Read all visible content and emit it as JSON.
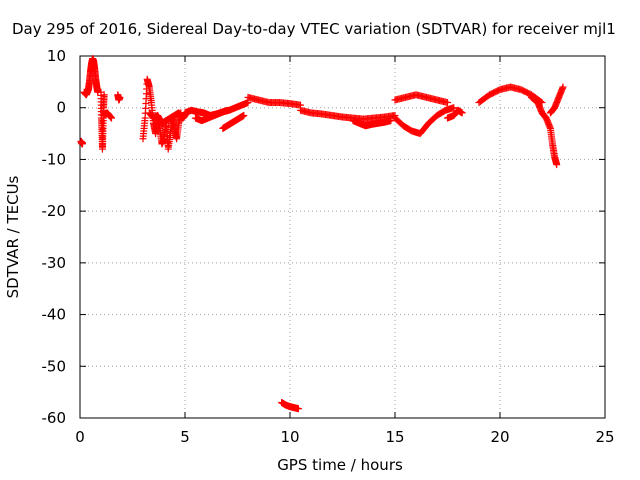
{
  "chart_data": {
    "type": "scatter",
    "title": "Day 295 of 2016, Sidereal Day-to-day VTEC variation (SDTVAR) for receiver mjl1",
    "xlabel": "GPS time / hours",
    "ylabel": "SDTVAR / TECUs",
    "xlim": [
      0,
      25
    ],
    "ylim": [
      -60,
      10
    ],
    "x_ticks": [
      0,
      5,
      10,
      15,
      20,
      25
    ],
    "y_ticks": [
      -60,
      -50,
      -40,
      -30,
      -20,
      -10,
      0,
      10
    ],
    "x_tick_labels": [
      "0",
      "5",
      "10",
      "15",
      "20",
      "25"
    ],
    "y_tick_labels": [
      "-60",
      "-50",
      "-40",
      "-30",
      "-20",
      "-10",
      "0",
      "10"
    ],
    "grid": true,
    "marker": "plus",
    "color": "#ff0000",
    "series": [
      {
        "name": "sdtvar",
        "segments": [
          {
            "x": [
              0.05,
              0.1,
              0.12
            ],
            "y": [
              -6.5,
              -7.0,
              -6.8
            ]
          },
          {
            "x": [
              0.2,
              0.3,
              0.4,
              0.45,
              0.5,
              0.55,
              0.6,
              0.65,
              0.7,
              0.75,
              0.8,
              0.85
            ],
            "y": [
              3.0,
              2.5,
              3.5,
              5.0,
              7.0,
              8.5,
              9.5,
              9.0,
              7.5,
              5.5,
              4.0,
              3.0
            ]
          },
          {
            "x": [
              1.0,
              1.02,
              1.05,
              1.07,
              1.1,
              1.12,
              1.15
            ],
            "y": [
              3.0,
              -2.0,
              -5.0,
              -8.0,
              -4.0,
              0.0,
              2.5
            ]
          },
          {
            "x": [
              1.1,
              1.3,
              1.5
            ],
            "y": [
              -1.5,
              -1.0,
              -2.0
            ]
          },
          {
            "x": [
              1.8,
              1.85,
              1.9
            ],
            "y": [
              2.5,
              1.5,
              2.0
            ]
          },
          {
            "x": [
              3.0,
              3.1,
              3.2,
              3.3,
              3.4,
              3.5,
              3.6,
              3.7,
              3.8,
              3.9,
              4.0,
              4.1,
              4.2,
              4.3,
              4.4,
              4.5,
              4.6,
              4.7,
              4.8
            ],
            "y": [
              -6.0,
              -2.0,
              5.5,
              4.0,
              1.0,
              -3.0,
              -5.0,
              -2.0,
              -4.0,
              -7.0,
              -6.0,
              -3.0,
              -8.0,
              -5.0,
              -2.0,
              -4.0,
              -6.0,
              -3.0,
              -1.0
            ]
          },
          {
            "x": [
              3.3,
              3.5,
              3.7,
              3.9,
              4.1,
              4.3,
              4.5,
              4.7,
              4.9,
              5.0
            ],
            "y": [
              -1.0,
              -2.0,
              -1.5,
              -3.0,
              -2.5,
              -2.0,
              -1.5,
              -1.0,
              -2.0,
              -1.5
            ]
          },
          {
            "x": [
              5.0,
              5.3,
              5.6,
              5.9,
              6.2,
              6.5,
              6.8,
              7.1,
              7.4,
              7.7,
              8.0
            ],
            "y": [
              -1.0,
              -0.5,
              -0.8,
              -1.0,
              -1.5,
              -1.2,
              -0.8,
              -0.5,
              0.0,
              0.5,
              1.0
            ]
          },
          {
            "x": [
              5.5,
              5.8,
              6.1,
              6.4,
              6.7,
              7.0
            ],
            "y": [
              -2.0,
              -2.5,
              -2.0,
              -1.5,
              -1.0,
              -0.5
            ]
          },
          {
            "x": [
              6.8,
              7.0,
              7.2,
              7.4,
              7.6,
              7.8
            ],
            "y": [
              -4.0,
              -3.5,
              -3.0,
              -2.5,
              -2.0,
              -1.5
            ]
          },
          {
            "x": [
              8.0,
              8.5,
              9.0,
              9.5,
              10.0,
              10.5
            ],
            "y": [
              2.0,
              1.5,
              1.0,
              1.0,
              0.8,
              0.5
            ]
          },
          {
            "x": [
              10.5,
              11.0,
              11.5,
              12.0,
              12.5,
              13.0,
              13.5,
              14.0,
              14.5,
              15.0
            ],
            "y": [
              -0.5,
              -1.0,
              -1.2,
              -1.5,
              -1.8,
              -2.0,
              -2.2,
              -2.0,
              -1.8,
              -1.5
            ]
          },
          {
            "x": [
              13.0,
              13.3,
              13.6,
              13.9,
              14.2,
              14.5,
              14.8
            ],
            "y": [
              -2.5,
              -3.0,
              -3.5,
              -3.2,
              -3.0,
              -2.8,
              -2.5
            ]
          },
          {
            "x": [
              15.0,
              15.5,
              16.0,
              16.5,
              17.0,
              17.5
            ],
            "y": [
              1.5,
              2.0,
              2.5,
              2.0,
              1.5,
              1.0
            ]
          },
          {
            "x": [
              15.0,
              15.4,
              15.8,
              16.2,
              16.6,
              17.0,
              17.4,
              17.8
            ],
            "y": [
              -2.0,
              -3.5,
              -4.5,
              -5.0,
              -3.0,
              -1.5,
              -0.5,
              0.0
            ]
          },
          {
            "x": [
              17.5,
              17.8,
              18.0,
              18.2
            ],
            "y": [
              -2.0,
              -1.5,
              -0.5,
              -1.0
            ]
          },
          {
            "x": [
              9.6,
              9.8,
              10.0,
              10.2,
              10.4
            ],
            "y": [
              -57.0,
              -57.5,
              -57.8,
              -58.0,
              -58.2
            ]
          },
          {
            "x": [
              19.0,
              19.5,
              20.0,
              20.5,
              21.0,
              21.5,
              22.0
            ],
            "y": [
              1.0,
              2.5,
              3.5,
              4.0,
              3.5,
              2.5,
              1.0
            ]
          },
          {
            "x": [
              21.5,
              21.8,
              22.0,
              22.2,
              22.4,
              22.5,
              22.6,
              22.7
            ],
            "y": [
              2.0,
              1.0,
              -1.0,
              -2.0,
              -4.0,
              -7.0,
              -9.5,
              -11.0
            ]
          },
          {
            "x": [
              22.4,
              22.6,
              22.8,
              23.0
            ],
            "y": [
              -1.0,
              0.0,
              2.0,
              4.0
            ]
          }
        ]
      }
    ]
  }
}
